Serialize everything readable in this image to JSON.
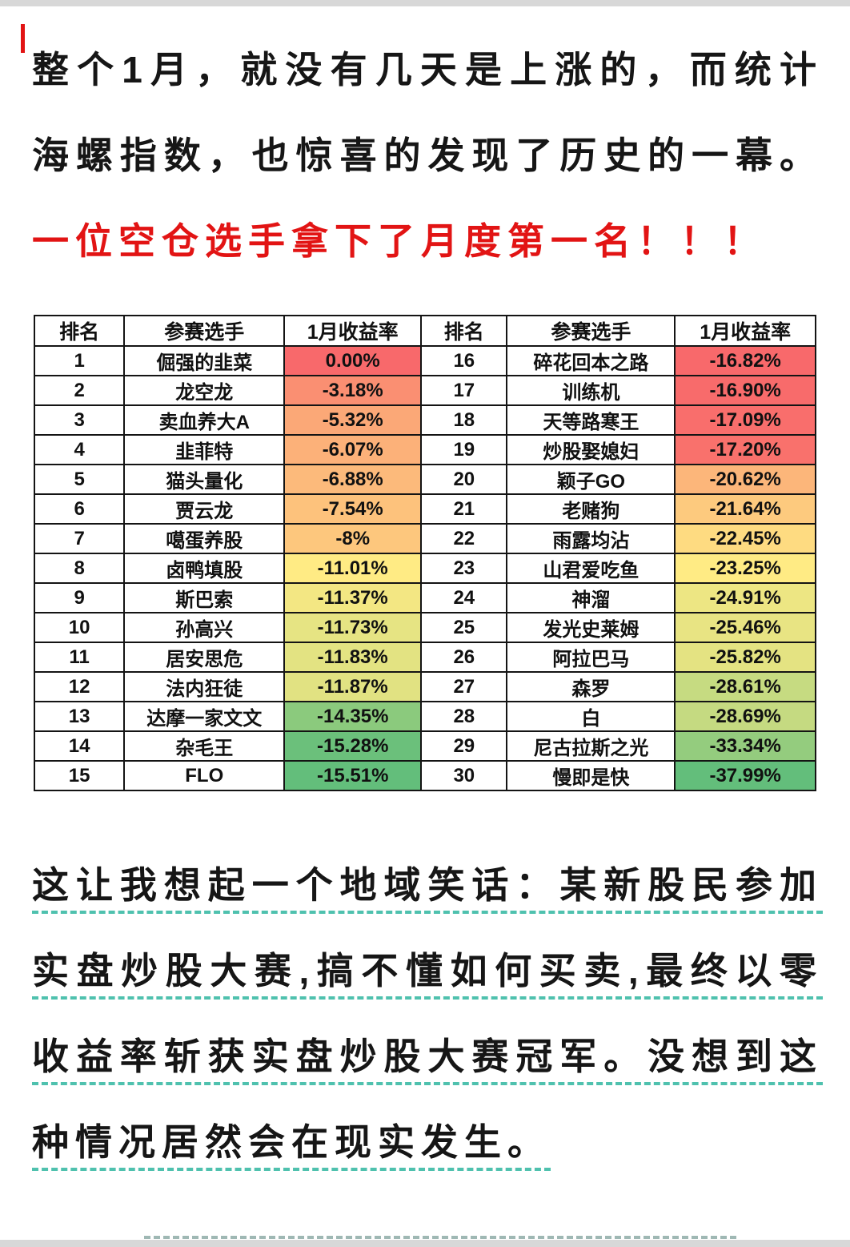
{
  "intro": {
    "black_text": "整个1月，就没有几天是上涨的，而统计海螺指数，也惊喜的发现了历史的一幕。",
    "red_text": "一位空仓选手拿下了月度第一名！！！",
    "red_color": "#e21414"
  },
  "table": {
    "headers": [
      "排名",
      "参赛选手",
      "1月收益率",
      "排名",
      "参赛选手",
      "1月收益率"
    ],
    "left": [
      {
        "rank": "1",
        "name": "倔强的韭菜",
        "ret": "0.00%",
        "bg": "#F8696B"
      },
      {
        "rank": "2",
        "name": "龙空龙",
        "ret": "-3.18%",
        "bg": "#FA8F72"
      },
      {
        "rank": "3",
        "name": "卖血养大A",
        "ret": "-5.32%",
        "bg": "#FBA877"
      },
      {
        "rank": "4",
        "name": "韭菲特",
        "ret": "-6.07%",
        "bg": "#FCB179"
      },
      {
        "rank": "5",
        "name": "猫头量化",
        "ret": "-6.88%",
        "bg": "#FCBA7B"
      },
      {
        "rank": "6",
        "name": "贾云龙",
        "ret": "-7.54%",
        "bg": "#FDC27C"
      },
      {
        "rank": "7",
        "name": "噶蛋养股",
        "ret": "-8%",
        "bg": "#FDC77D"
      },
      {
        "rank": "8",
        "name": "卤鸭填股",
        "ret": "-11.01%",
        "bg": "#FFEB84"
      },
      {
        "rank": "9",
        "name": "斯巴索",
        "ret": "-11.37%",
        "bg": "#F3E783"
      },
      {
        "rank": "10",
        "name": "孙高兴",
        "ret": "-11.73%",
        "bg": "#E6E483"
      },
      {
        "rank": "11",
        "name": "居安思危",
        "ret": "-11.83%",
        "bg": "#E3E382"
      },
      {
        "rank": "12",
        "name": "法内狂徒",
        "ret": "-11.87%",
        "bg": "#E1E282"
      },
      {
        "rank": "13",
        "name": "达摩一家文文",
        "ret": "-14.35%",
        "bg": "#8BCA7D"
      },
      {
        "rank": "14",
        "name": "杂毛王",
        "ret": "-15.28%",
        "bg": "#6BC07B"
      },
      {
        "rank": "15",
        "name": "FLO",
        "ret": "-15.51%",
        "bg": "#63BE7B"
      }
    ],
    "right": [
      {
        "rank": "16",
        "name": "碎花回本之路",
        "ret": "-16.82%",
        "bg": "#F8696B"
      },
      {
        "rank": "17",
        "name": "训练机",
        "ret": "-16.90%",
        "bg": "#F86B6B"
      },
      {
        "rank": "18",
        "name": "天等路寒王",
        "ret": "-17.09%",
        "bg": "#F96E6C"
      },
      {
        "rank": "19",
        "name": "炒股娶媳妇",
        "ret": "-17.20%",
        "bg": "#F9716C"
      },
      {
        "rank": "20",
        "name": "颖子GO",
        "ret": "-20.62%",
        "bg": "#FCB67A"
      },
      {
        "rank": "21",
        "name": "老赌狗",
        "ret": "-21.64%",
        "bg": "#FDCA7E"
      },
      {
        "rank": "22",
        "name": "雨露均沾",
        "ret": "-22.45%",
        "bg": "#FEDB81"
      },
      {
        "rank": "23",
        "name": "山君爱吃鱼",
        "ret": "-23.25%",
        "bg": "#FFEB84"
      },
      {
        "rank": "24",
        "name": "神溜",
        "ret": "-24.91%",
        "bg": "#EDE683"
      },
      {
        "rank": "25",
        "name": "发光史莱姆",
        "ret": "-25.46%",
        "bg": "#E8E483"
      },
      {
        "rank": "26",
        "name": "阿拉巴马",
        "ret": "-25.82%",
        "bg": "#E4E382"
      },
      {
        "rank": "27",
        "name": "森罗",
        "ret": "-28.61%",
        "bg": "#C6DB81"
      },
      {
        "rank": "28",
        "name": "白",
        "ret": "-28.69%",
        "bg": "#C5DA81"
      },
      {
        "rank": "29",
        "name": "尼古拉斯之光",
        "ret": "-33.34%",
        "bg": "#94CC7E"
      },
      {
        "rank": "30",
        "name": "慢即是快",
        "ret": "-37.99%",
        "bg": "#63BE7B"
      }
    ]
  },
  "outro": {
    "text": "这让我想起一个地域笑话：某新股民参加实盘炒股大赛,搞不懂如何买卖,最终以零收益率斩获实盘炒股大赛冠军。没想到这种情况居然会在现实发生。",
    "underline_color": "#4FC1AE"
  }
}
